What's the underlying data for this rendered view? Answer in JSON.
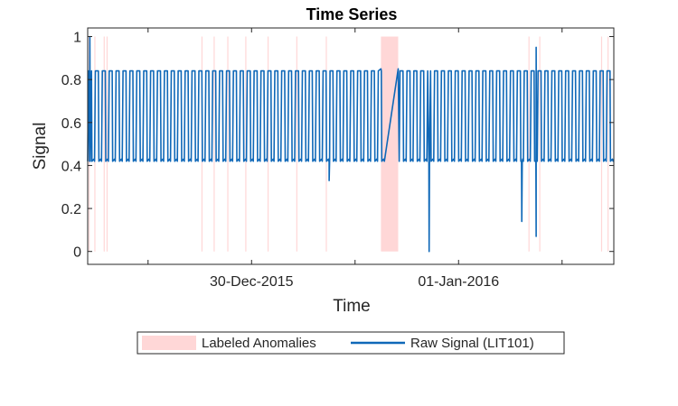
{
  "chart_data": {
    "type": "line",
    "title": "Time Series",
    "xlabel": "Time",
    "ylabel": "Signal",
    "x_range": [
      "2015-12-28 10:00",
      "2016-01-02 12:00"
    ],
    "ylim": [
      -0.06,
      1.04
    ],
    "y_ticks": [
      0,
      0.2,
      0.4,
      0.6,
      0.8,
      1
    ],
    "y_tick_labels": [
      "0",
      "0.2",
      "0.4",
      "0.6",
      "0.8",
      "1"
    ],
    "x_ticks": [
      "2015-12-29 00:00",
      "2015-12-30 00:00",
      "2015-12-31 00:00",
      "2016-01-01 00:00",
      "2016-01-02 00:00"
    ],
    "x_tick_labels": [
      "",
      "30-Dec-2015",
      "",
      "01-Jan-2016",
      ""
    ],
    "grid": false,
    "legend": {
      "position": "bottom",
      "entries": [
        "Labeled Anomalies",
        "Raw Signal (LIT101)"
      ]
    },
    "colors": {
      "signal": "#0f68b8",
      "anomaly": "#ffd7d7"
    },
    "signal": {
      "name": "Raw Signal (LIT101)",
      "low": 0.42,
      "high": 0.84,
      "cycles_per_day": 15
    },
    "anomaly_regions": [
      {
        "start": "2015-12-31 06:00",
        "end": "2015-12-31 10:00"
      }
    ],
    "anomaly_lines": [
      "2015-12-28 10:20",
      "2015-12-28 11:40",
      "2015-12-28 13:50",
      "2015-12-28 14:30",
      "2015-12-29 12:30",
      "2015-12-29 15:20",
      "2015-12-29 18:30",
      "2015-12-29 22:40",
      "2015-12-30 03:50",
      "2015-12-30 10:30",
      "2015-12-30 17:20",
      "2016-01-01 16:20",
      "2016-01-01 18:50",
      "2016-01-02 09:10",
      "2016-01-02 10:40"
    ],
    "signal_events": [
      {
        "type": "plateau",
        "start": "2015-12-31 06:00",
        "end": "2015-12-31 10:00",
        "value": 0.85
      },
      {
        "type": "dip",
        "time": "2015-12-30 18:00",
        "value": 0.33
      },
      {
        "type": "dip",
        "time": "2015-12-31 17:10",
        "value": 0.0
      },
      {
        "type": "dip",
        "time": "2016-01-01 14:40",
        "value": 0.14
      },
      {
        "type": "dip",
        "time": "2016-01-01 18:00",
        "value": 0.07
      },
      {
        "type": "spike",
        "time": "2016-01-01 18:00",
        "value": 0.95
      },
      {
        "type": "spike",
        "time": "2015-12-28 10:30",
        "value": 1.0
      }
    ]
  }
}
